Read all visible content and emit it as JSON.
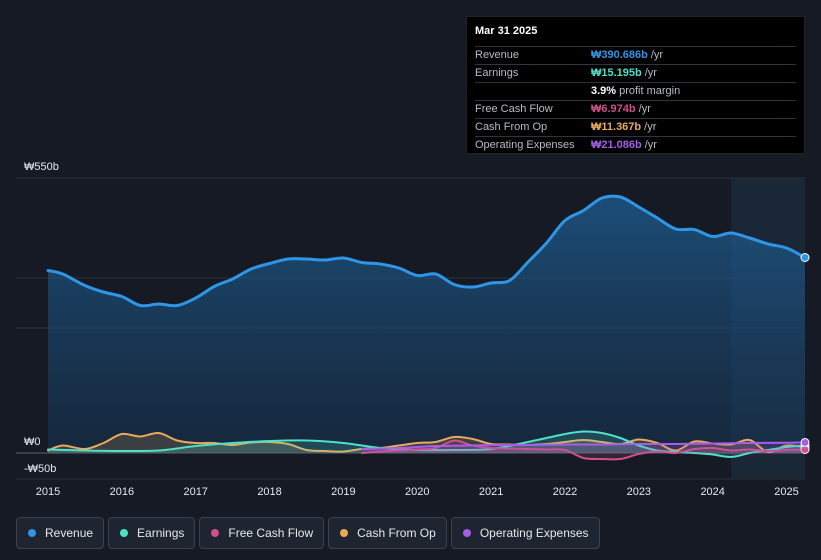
{
  "chart_data": {
    "type": "area",
    "currency": "₩",
    "y_axis": {
      "min": -50,
      "max": 550,
      "labels": [
        "₩550b",
        "₩0",
        "-₩50b"
      ]
    },
    "x_axis": {
      "ticks": [
        "2015",
        "2016",
        "2017",
        "2018",
        "2019",
        "2020",
        "2021",
        "2022",
        "2023",
        "2024",
        "2025"
      ]
    },
    "x_range": [
      2015.0,
      2025.25
    ],
    "forecast_start": 2024.25,
    "series": [
      {
        "name": "Revenue",
        "color": "#2f95e6",
        "x": [
          2015.0,
          2015.2,
          2015.5,
          2015.75,
          2016.0,
          2016.25,
          2016.5,
          2016.75,
          2017.0,
          2017.25,
          2017.5,
          2017.75,
          2018.0,
          2018.25,
          2018.5,
          2018.75,
          2019.0,
          2019.25,
          2019.5,
          2019.75,
          2020.0,
          2020.25,
          2020.5,
          2020.75,
          2021.0,
          2021.25,
          2021.5,
          2021.75,
          2022.0,
          2022.25,
          2022.5,
          2022.75,
          2023.0,
          2023.25,
          2023.5,
          2023.75,
          2024.0,
          2024.25,
          2024.5,
          2024.75,
          2025.0,
          2025.25
        ],
        "y": [
          365,
          358,
          335,
          322,
          313,
          295,
          298,
          295,
          310,
          333,
          348,
          368,
          379,
          388,
          388,
          386,
          390,
          381,
          378,
          370,
          355,
          358,
          337,
          332,
          340,
          345,
          382,
          420,
          465,
          485,
          510,
          512,
          492,
          470,
          448,
          447,
          433,
          440,
          430,
          418,
          410,
          391
        ]
      },
      {
        "name": "Earnings",
        "color": "#4fe0c8",
        "x": [
          2015.0,
          2015.5,
          2016.0,
          2016.5,
          2017.0,
          2017.5,
          2018.0,
          2018.5,
          2019.0,
          2019.5,
          2020.0,
          2020.5,
          2021.0,
          2021.5,
          2022.0,
          2022.25,
          2022.5,
          2022.75,
          2023.0,
          2023.25,
          2023.5,
          2023.75,
          2024.0,
          2024.25,
          2024.5,
          2024.75,
          2025.0,
          2025.25
        ],
        "y": [
          7,
          5,
          4,
          5,
          14,
          20,
          24,
          25,
          20,
          10,
          6,
          6,
          8,
          22,
          38,
          43,
          40,
          30,
          15,
          5,
          2,
          0,
          -3,
          -8,
          0,
          6,
          12,
          15.2
        ]
      },
      {
        "name": "Free Cash Flow",
        "color": "#d0508a",
        "x": [
          2019.25,
          2019.5,
          2019.75,
          2020.0,
          2020.25,
          2020.5,
          2020.75,
          2021.0,
          2021.25,
          2021.5,
          2021.75,
          2022.0,
          2022.25,
          2022.5,
          2022.75,
          2023.0,
          2023.25,
          2023.5,
          2023.75,
          2024.0,
          2024.25,
          2024.5,
          2024.75,
          2025.0,
          2025.25
        ],
        "y": [
          0,
          3,
          5,
          7,
          10,
          25,
          15,
          10,
          9,
          8,
          7,
          6,
          -10,
          -12,
          -12,
          -2,
          3,
          0,
          8,
          10,
          5,
          7,
          4,
          6,
          7
        ]
      },
      {
        "name": "Cash From Op",
        "color": "#e9aa5a",
        "x": [
          2015.0,
          2015.2,
          2015.5,
          2015.75,
          2016.0,
          2016.25,
          2016.5,
          2016.75,
          2017.0,
          2017.25,
          2017.5,
          2017.75,
          2018.0,
          2018.25,
          2018.5,
          2018.75,
          2019.0,
          2019.25,
          2019.5,
          2019.75,
          2020.0,
          2020.25,
          2020.5,
          2020.75,
          2021.0,
          2021.25,
          2021.5,
          2021.75,
          2022.0,
          2022.25,
          2022.5,
          2022.75,
          2023.0,
          2023.25,
          2023.5,
          2023.75,
          2024.0,
          2024.25,
          2024.5,
          2024.75,
          2025.0,
          2025.25
        ],
        "y": [
          5,
          15,
          8,
          20,
          38,
          33,
          40,
          25,
          20,
          20,
          16,
          21,
          22,
          18,
          6,
          4,
          3,
          8,
          10,
          15,
          20,
          22,
          32,
          28,
          18,
          17,
          16,
          18,
          22,
          26,
          22,
          18,
          27,
          20,
          5,
          23,
          19,
          17,
          26,
          2,
          15,
          11.4
        ]
      },
      {
        "name": "Operating Expenses",
        "color": "#a65ee8",
        "x": [
          2019.25,
          2019.75,
          2020.0,
          2020.25,
          2020.75,
          2021.0,
          2021.5,
          2022.0,
          2022.5,
          2023.0,
          2023.5,
          2024.0,
          2024.5,
          2025.0,
          2025.25
        ],
        "y": [
          8,
          10,
          12,
          14,
          15,
          16,
          16,
          17,
          17,
          18,
          18,
          19,
          20,
          20.5,
          21.1
        ]
      }
    ]
  },
  "tooltip": {
    "date": "Mar 31 2025",
    "rows": [
      {
        "label": "Revenue",
        "value": "₩390.686b",
        "unit": "/yr",
        "color": "#2f95e6"
      },
      {
        "label": "Earnings",
        "value": "₩15.195b",
        "unit": "/yr",
        "color": "#4fe0c8"
      },
      {
        "label": "",
        "value": "3.9%",
        "unit": "profit margin",
        "color": "#ffffff"
      },
      {
        "label": "Free Cash Flow",
        "value": "₩6.974b",
        "unit": "/yr",
        "color": "#d0508a"
      },
      {
        "label": "Cash From Op",
        "value": "₩11.367b",
        "unit": "/yr",
        "color": "#e9aa5a"
      },
      {
        "label": "Operating Expenses",
        "value": "₩21.086b",
        "unit": "/yr",
        "color": "#a65ee8"
      }
    ]
  },
  "legend": [
    {
      "label": "Revenue",
      "color": "#2f95e6"
    },
    {
      "label": "Earnings",
      "color": "#4fe0c8"
    },
    {
      "label": "Free Cash Flow",
      "color": "#d0508a"
    },
    {
      "label": "Cash From Op",
      "color": "#e9aa5a"
    },
    {
      "label": "Operating Expenses",
      "color": "#a65ee8"
    }
  ]
}
